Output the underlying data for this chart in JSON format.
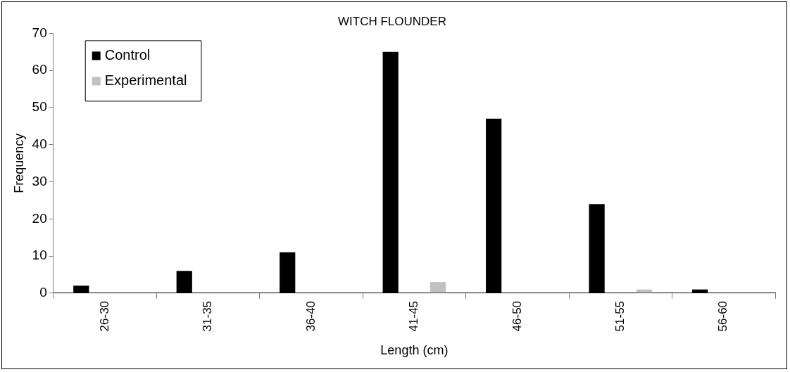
{
  "chart_data": {
    "type": "bar",
    "title": "WITCH FLOUNDER",
    "xlabel": "Length (cm)",
    "ylabel": "Frequency",
    "categories": [
      "26-30",
      "31-35",
      "36-40",
      "41-45",
      "46-50",
      "51-55",
      "56-60"
    ],
    "series": [
      {
        "name": "Control",
        "color": "#000000",
        "values": [
          2,
          6,
          11,
          65,
          47,
          24,
          1
        ]
      },
      {
        "name": "Experimental",
        "color": "#c0c0c0",
        "values": [
          0,
          0,
          0,
          3,
          0,
          1,
          0
        ]
      }
    ],
    "ylim": [
      0,
      70
    ],
    "yticks": [
      0,
      10,
      20,
      30,
      40,
      50,
      60,
      70
    ],
    "grid": false,
    "legend": "top left"
  }
}
